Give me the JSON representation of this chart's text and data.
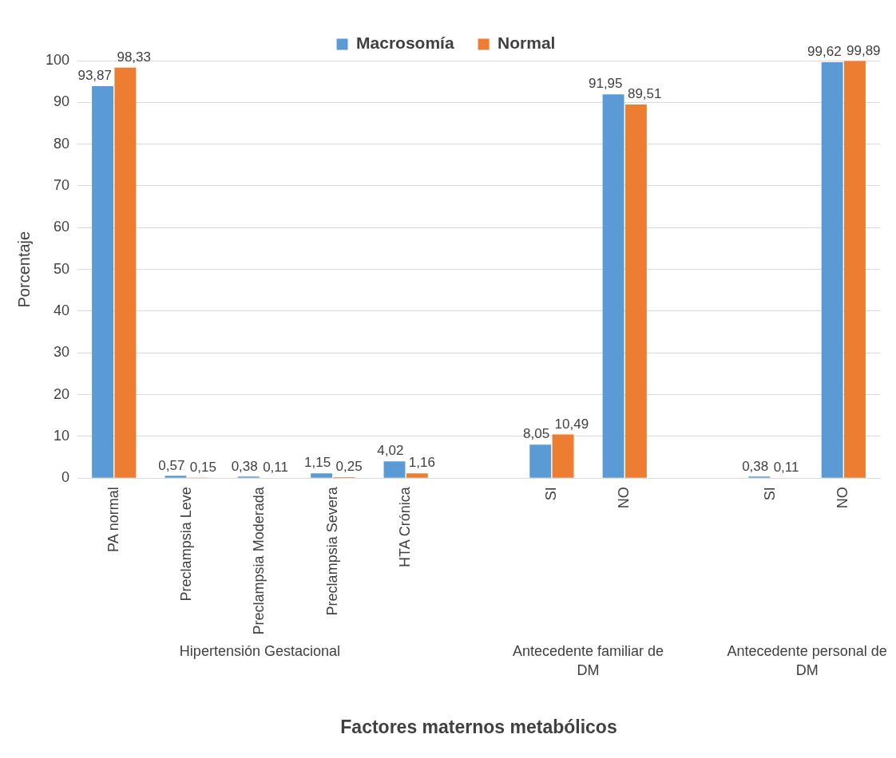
{
  "chart_data": {
    "type": "bar",
    "xlabel": "Factores maternos metabólicos",
    "ylabel": "Porcentaje",
    "categories": [
      "PA normal",
      "Preclampsia Leve",
      "Preclampsia Moderada",
      "Preclampsia Severa",
      "HTA Crónica",
      null,
      "SI",
      "NO",
      null,
      "SI",
      "NO"
    ],
    "annotations": [
      "Hipertensión Gestacional",
      "Antecedente familiar de DM",
      "Antecedente personal de DM"
    ],
    "series": [
      {
        "name": "Macrosomía",
        "color": "#5b9bd5",
        "values": [
          93.87,
          0.57,
          0.38,
          1.15,
          4.02,
          null,
          8.05,
          91.95,
          null,
          0.38,
          99.62
        ],
        "value_labels": [
          "93,87",
          "0,57",
          "0,38",
          "1,15",
          "4,02",
          null,
          "8,05",
          "91,95",
          null,
          "0,38",
          "99,62"
        ]
      },
      {
        "name": "Normal",
        "color": "#ed7d31",
        "values": [
          98.33,
          0.15,
          0.11,
          0.25,
          1.16,
          null,
          10.49,
          89.51,
          null,
          0.11,
          99.89
        ],
        "value_labels": [
          "98,33",
          "0,15",
          "0,11",
          "0,25",
          "1,16",
          null,
          "10,49",
          "89,51",
          null,
          "0,11",
          "99,89"
        ]
      }
    ],
    "ylim": [
      0,
      100
    ],
    "yticks": [
      0,
      10,
      20,
      30,
      40,
      50,
      60,
      70,
      80,
      90,
      100
    ],
    "grid": "y",
    "legend": "top"
  }
}
